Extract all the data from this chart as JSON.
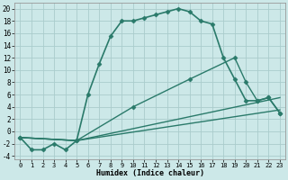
{
  "xlabel": "Humidex (Indice chaleur)",
  "background_color": "#cce8e8",
  "grid_color": "#aacccc",
  "line_color": "#2a7a6a",
  "xlim": [
    -0.5,
    23.5
  ],
  "ylim": [
    -4.5,
    21
  ],
  "xticks": [
    0,
    1,
    2,
    3,
    4,
    5,
    6,
    7,
    8,
    9,
    10,
    11,
    12,
    13,
    14,
    15,
    16,
    17,
    18,
    19,
    20,
    21,
    22,
    23
  ],
  "yticks": [
    -4,
    -2,
    0,
    2,
    4,
    6,
    8,
    10,
    12,
    14,
    16,
    18,
    20
  ],
  "series": [
    {
      "x": [
        0,
        1,
        2,
        3,
        4,
        5,
        6,
        7,
        8,
        9,
        10,
        11,
        12,
        13,
        14,
        15,
        16,
        17,
        18,
        19,
        20,
        21,
        22,
        23
      ],
      "y": [
        -1,
        -3,
        -3,
        -2,
        -3,
        -1.5,
        6,
        11,
        15.5,
        18,
        18,
        18.5,
        19,
        19.5,
        20,
        19.5,
        18,
        17.5,
        12,
        8.5,
        5,
        5,
        5.5,
        3
      ],
      "marker": "D",
      "markersize": 2.5,
      "linewidth": 1.2
    },
    {
      "x": [
        0,
        5,
        10,
        15,
        19,
        20,
        21,
        22,
        23
      ],
      "y": [
        -1,
        -1.5,
        4,
        8.5,
        12,
        8,
        5,
        5.5,
        3
      ],
      "marker": "D",
      "markersize": 2.5,
      "linewidth": 1.0
    },
    {
      "x": [
        0,
        5,
        23
      ],
      "y": [
        -1,
        -1.5,
        5.5
      ],
      "marker": null,
      "markersize": 0,
      "linewidth": 1.0
    },
    {
      "x": [
        0,
        5,
        23
      ],
      "y": [
        -1,
        -1.5,
        3.5
      ],
      "marker": null,
      "markersize": 0,
      "linewidth": 1.0
    }
  ]
}
